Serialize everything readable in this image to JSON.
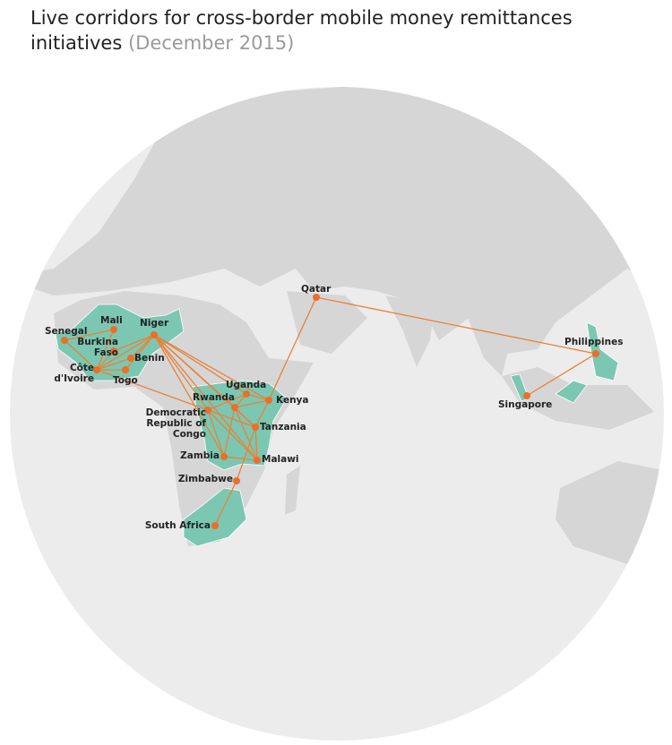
{
  "header": {
    "title": "Live corridors for cross-border mobile money remittances initiatives",
    "subtitle": "(December 2015)"
  },
  "map": {
    "labels": [
      "Senegal",
      "Mali",
      "Burkina Faso",
      "Niger",
      "Benin",
      "Côte d'Ivoire",
      "Togo",
      "Uganda",
      "Rwanda",
      "Kenya",
      "Democratic Republic of Congo",
      "Tanzania",
      "Zambia",
      "Malawi",
      "Zimbabwe",
      "South Africa",
      "Qatar",
      "Philippines",
      "Singapore"
    ]
  }
}
